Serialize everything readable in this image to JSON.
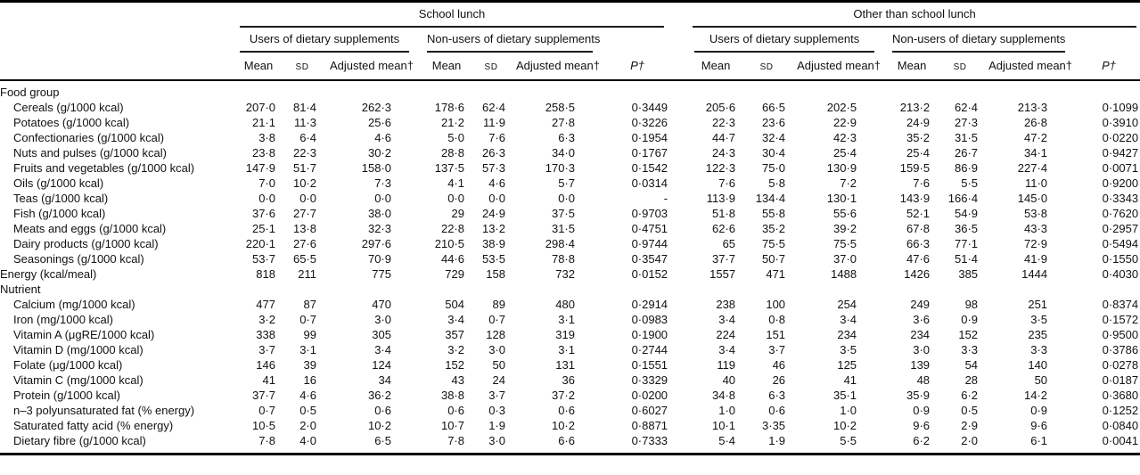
{
  "table": {
    "groups": [
      {
        "label": "School lunch"
      },
      {
        "label": "Other than school lunch"
      }
    ],
    "sub_groups": [
      "Users of dietary supplements",
      "Non-users of dietary supplements"
    ],
    "stat_cols": [
      "Mean",
      "SD",
      "Adjusted mean†"
    ],
    "p_col": "P†",
    "rows": [
      {
        "type": "section",
        "label": "Food group"
      },
      {
        "type": "data",
        "indent": true,
        "label": "Cereals (g/1000 kcal)",
        "values": [
          "207·0",
          "81·4",
          "262·3",
          "178·6",
          "62·4",
          "258·5",
          "0·3449",
          "205·6",
          "66·5",
          "202·5",
          "213·2",
          "62·4",
          "213·3",
          "0·1099"
        ]
      },
      {
        "type": "data",
        "indent": true,
        "label": "Potatoes (g/1000 kcal)",
        "values": [
          "21·1",
          "11·3",
          "25·6",
          "21·2",
          "11·9",
          "27·8",
          "0·3226",
          "22·3",
          "23·6",
          "22·9",
          "24·9",
          "27·3",
          "26·8",
          "0·3910"
        ]
      },
      {
        "type": "data",
        "indent": true,
        "label": "Confectionaries (g/1000 kcal)",
        "values": [
          "3·8",
          "6·4",
          "4·6",
          "5·0",
          "7·6",
          "6·3",
          "0·1954",
          "44·7",
          "32·4",
          "42·3",
          "35·2",
          "31·5",
          "47·2",
          "0·0220"
        ]
      },
      {
        "type": "data",
        "indent": true,
        "label": "Nuts and pulses (g/1000 kcal)",
        "values": [
          "23·8",
          "22·3",
          "30·2",
          "28·8",
          "26·3",
          "34·0",
          "0·1767",
          "24·3",
          "30·4",
          "25·4",
          "25·4",
          "26·7",
          "34·1",
          "0·9427"
        ]
      },
      {
        "type": "data",
        "indent": true,
        "label": "Fruits and vegetables (g/1000 kcal)",
        "values": [
          "147·9",
          "51·7",
          "158·0",
          "137·5",
          "57·3",
          "170·3",
          "0·1542",
          "122·3",
          "75·0",
          "130·9",
          "159·5",
          "86·9",
          "227·4",
          "0·0071"
        ]
      },
      {
        "type": "data",
        "indent": true,
        "label": "Oils (g/1000 kcal)",
        "values": [
          "7·0",
          "10·2",
          "7·3",
          "4·1",
          "4·6",
          "5·7",
          "0·0314",
          "7·6",
          "5·8",
          "7·2",
          "7·6",
          "5·5",
          "11·0",
          "0·9200"
        ]
      },
      {
        "type": "data",
        "indent": true,
        "label": "Teas (g/1000 kcal)",
        "values": [
          "0·0",
          "0·0",
          "0·0",
          "0·0",
          "0·0",
          "0·0",
          "-",
          "113·9",
          "134·4",
          "130·1",
          "143·9",
          "166·4",
          "145·0",
          "0·3343"
        ]
      },
      {
        "type": "data",
        "indent": true,
        "label": "Fish (g/1000 kcal)",
        "values": [
          "37·6",
          "27·7",
          "38·0",
          "29",
          "24·9",
          "37·5",
          "0·9703",
          "51·8",
          "55·8",
          "55·6",
          "52·1",
          "54·9",
          "53·8",
          "0·7620"
        ]
      },
      {
        "type": "data",
        "indent": true,
        "label": "Meats and eggs (g/1000 kcal)",
        "values": [
          "25·1",
          "13·8",
          "32·3",
          "22·8",
          "13·2",
          "31·5",
          "0·4751",
          "62·6",
          "35·2",
          "39·2",
          "67·8",
          "36·5",
          "43·3",
          "0·2957"
        ]
      },
      {
        "type": "data",
        "indent": true,
        "label": "Dairy products (g/1000 kcal)",
        "values": [
          "220·1",
          "27·6",
          "297·6",
          "210·5",
          "38·9",
          "298·4",
          "0·9744",
          "65",
          "75·5",
          "75·5",
          "66·3",
          "77·1",
          "72·9",
          "0·5494"
        ]
      },
      {
        "type": "data",
        "indent": true,
        "label": "Seasonings (g/1000 kcal)",
        "values": [
          "53·7",
          "65·5",
          "70·9",
          "44·6",
          "53·5",
          "78·8",
          "0·3547",
          "37·7",
          "50·7",
          "37·0",
          "47·6",
          "51·4",
          "41·9",
          "0·1550"
        ]
      },
      {
        "type": "data",
        "indent": false,
        "label": "Energy (kcal/meal)",
        "values": [
          "818",
          "211",
          "775",
          "729",
          "158",
          "732",
          "0·0152",
          "1557",
          "471",
          "1488",
          "1426",
          "385",
          "1444",
          "0·4030"
        ]
      },
      {
        "type": "section",
        "label": "Nutrient"
      },
      {
        "type": "data",
        "indent": true,
        "label": "Calcium (mg/1000 kcal)",
        "values": [
          "477",
          "87",
          "470",
          "504",
          "89",
          "480",
          "0·2914",
          "238",
          "100",
          "254",
          "249",
          "98",
          "251",
          "0·8374"
        ]
      },
      {
        "type": "data",
        "indent": true,
        "label": "Iron (mg/1000 kcal)",
        "values": [
          "3·2",
          "0·7",
          "3·0",
          "3·4",
          "0·7",
          "3·1",
          "0·0983",
          "3·4",
          "0·8",
          "3·4",
          "3·6",
          "0·9",
          "3·5",
          "0·1572"
        ]
      },
      {
        "type": "data",
        "indent": true,
        "label": "Vitamin A (μgRE/1000 kcal)",
        "values": [
          "338",
          "99",
          "305",
          "357",
          "128",
          "319",
          "0·1900",
          "224",
          "151",
          "234",
          "234",
          "152",
          "235",
          "0·9500"
        ]
      },
      {
        "type": "data",
        "indent": true,
        "label": "Vitamin D (mg/1000 kcal)",
        "values": [
          "3·7",
          "3·1",
          "3·4",
          "3·2",
          "3·0",
          "3·1",
          "0·2744",
          "3·4",
          "3·7",
          "3·5",
          "3·0",
          "3·3",
          "3·3",
          "0·3786"
        ]
      },
      {
        "type": "data",
        "indent": true,
        "label": "Folate (μg/1000 kcal)",
        "values": [
          "146",
          "39",
          "124",
          "152",
          "50",
          "131",
          "0·1551",
          "119",
          "46",
          "125",
          "139",
          "54",
          "140",
          "0·0278"
        ]
      },
      {
        "type": "data",
        "indent": true,
        "label": "Vitamin C (mg/1000 kcal)",
        "values": [
          "41",
          "16",
          "34",
          "43",
          "24",
          "36",
          "0·3329",
          "40",
          "26",
          "41",
          "48",
          "28",
          "50",
          "0·0187"
        ]
      },
      {
        "type": "data",
        "indent": true,
        "label": "Protein (g/1000 kcal)",
        "values": [
          "37·7",
          "4·6",
          "36·2",
          "38·8",
          "3·7",
          "37·2",
          "0·0200",
          "34·8",
          "6·3",
          "35·1",
          "35·9",
          "6·2",
          "14·2",
          "0·3680"
        ]
      },
      {
        "type": "data",
        "indent": true,
        "label": "n–3 polyunsaturated fat (% energy)",
        "values": [
          "0·7",
          "0·5",
          "0·6",
          "0·6",
          "0·3",
          "0·6",
          "0·6027",
          "1·0",
          "0·6",
          "1·0",
          "0·9",
          "0·5",
          "0·9",
          "0·1252"
        ]
      },
      {
        "type": "data",
        "indent": true,
        "label": "Saturated fatty acid (% energy)",
        "values": [
          "10·5",
          "2·0",
          "10·2",
          "10·7",
          "1·9",
          "10·2",
          "0·8871",
          "10·1",
          "3·35",
          "10·2",
          "9·6",
          "2·9",
          "9·6",
          "0·0840"
        ]
      },
      {
        "type": "data",
        "indent": true,
        "label": "Dietary fibre (g/1000 kcal)",
        "values": [
          "7·8",
          "4·0",
          "6·5",
          "7·8",
          "3·0",
          "6·6",
          "0·7333",
          "5·4",
          "1·9",
          "5·5",
          "6·2",
          "2·0",
          "6·1",
          "0·0041"
        ]
      }
    ]
  }
}
